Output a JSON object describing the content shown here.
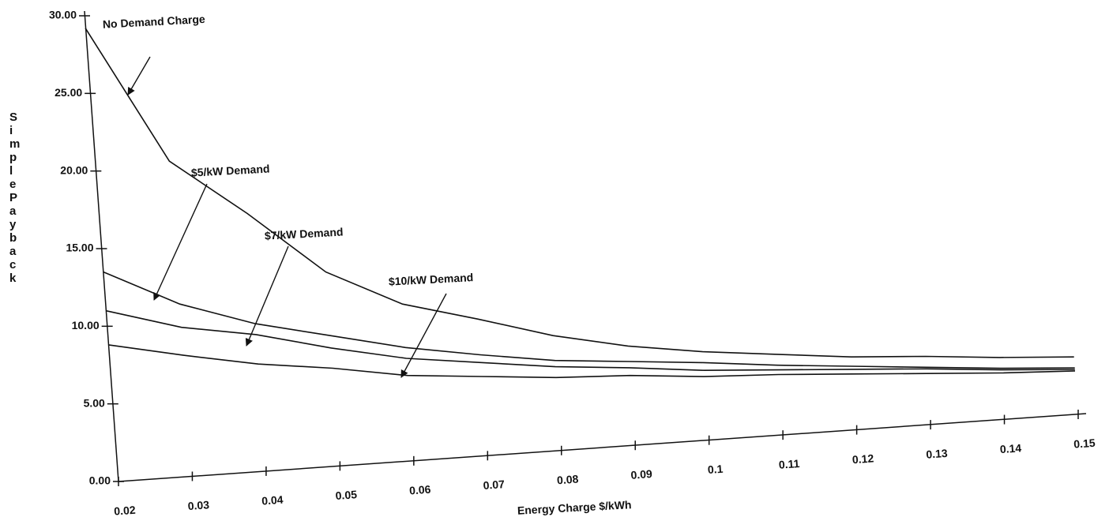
{
  "chart_data": {
    "type": "line",
    "x_label": "Energy Charge $/kWh",
    "y_label": "Simple Payback",
    "x": [
      0.02,
      0.03,
      0.04,
      0.05,
      0.06,
      0.07,
      0.08,
      0.09,
      0.1,
      0.11,
      0.12,
      0.13,
      0.14,
      0.15
    ],
    "xlim": [
      0.02,
      0.15
    ],
    "xticks": [
      0.02,
      0.03,
      0.04,
      0.05,
      0.06,
      0.07,
      0.08,
      0.09,
      0.1,
      0.11,
      0.12,
      0.13,
      0.14,
      0.15
    ],
    "ylim": [
      0,
      30
    ],
    "yticks": [
      {
        "value": 0,
        "label": "0.00"
      },
      {
        "value": 5,
        "label": "5.00"
      },
      {
        "value": 10,
        "label": "10.00"
      },
      {
        "value": 15,
        "label": "15.00"
      },
      {
        "value": 20,
        "label": "20.00"
      },
      {
        "value": 25,
        "label": "25.00"
      },
      {
        "value": 30,
        "label": "30.00"
      }
    ],
    "series": [
      {
        "name": "No Demand Charge",
        "color": "#111111",
        "values": [
          29.2,
          20.3,
          16.6,
          12.5,
          10.1,
          8.8,
          7.4,
          6.4,
          5.7,
          5.2,
          4.7,
          4.4,
          4.0,
          3.7
        ]
      },
      {
        "name": "$5/kW Demand",
        "color": "#111111",
        "values": [
          13.5,
          11.1,
          9.5,
          8.4,
          7.3,
          6.5,
          5.8,
          5.4,
          5.0,
          4.5,
          4.1,
          3.7,
          3.3,
          3.0
        ]
      },
      {
        "name": "$7/kW Demand",
        "color": "#111111",
        "values": [
          11.0,
          9.6,
          8.8,
          7.6,
          6.6,
          6.0,
          5.4,
          5.0,
          4.5,
          4.2,
          3.9,
          3.6,
          3.2,
          2.9
        ]
      },
      {
        "name": "$10/kW Demand",
        "color": "#111111",
        "values": [
          8.8,
          7.8,
          6.9,
          6.3,
          5.5,
          5.1,
          4.7,
          4.5,
          4.1,
          3.9,
          3.6,
          3.3,
          3.0,
          2.8
        ]
      }
    ]
  }
}
